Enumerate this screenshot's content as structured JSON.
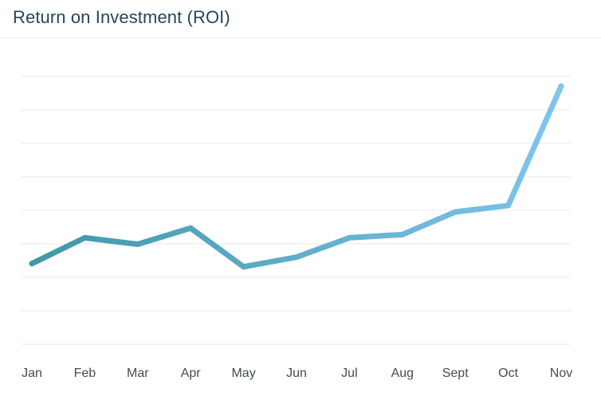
{
  "header": {
    "title": "Return on Investment (ROI)"
  },
  "chart_data": {
    "type": "line",
    "title": "Return on Investment (ROI)",
    "xlabel": "",
    "ylabel": "",
    "categories": [
      "Jan",
      "Feb",
      "Mar",
      "Apr",
      "May",
      "Jun",
      "Jul",
      "Aug",
      "Sept",
      "Oct",
      "Nov"
    ],
    "series": [
      {
        "name": "ROI",
        "values": [
          2.1,
          2.9,
          2.7,
          3.2,
          2.0,
          2.3,
          2.9,
          3.0,
          3.7,
          3.9,
          7.6
        ]
      }
    ],
    "ylim": [
      -0.4,
      7.9
    ],
    "gridlines": 9,
    "grid": true,
    "legend": "none",
    "colors": {
      "line_start": "#3f97a8",
      "line_end": "#80c4ec",
      "grid": "#e6e9eb",
      "tick_text": "#444c52",
      "title_text": "#24475a"
    }
  }
}
